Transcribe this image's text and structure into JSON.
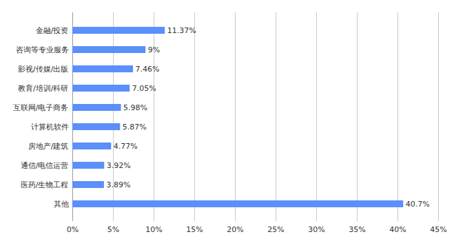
{
  "chart_data": {
    "type": "bar",
    "orientation": "horizontal",
    "categories": [
      "金融/投资",
      "咨询等专业服务",
      "影视/传媒/出版",
      "教育/培训/科研",
      "互联网/电子商务",
      "计算机软件",
      "房地产/建筑",
      "通信/电信运营",
      "医药/生物工程",
      "其他"
    ],
    "values": [
      11.37,
      9,
      7.46,
      7.05,
      5.98,
      5.87,
      4.77,
      3.92,
      3.89,
      40.7
    ],
    "value_labels": [
      "11.37%",
      "9%",
      "7.46%",
      "7.05%",
      "5.98%",
      "5.87%",
      "4.77%",
      "3.92%",
      "3.89%",
      "40.7%"
    ],
    "data_labels": true,
    "color": "#5b8ff9",
    "xlim": [
      0,
      45
    ],
    "xticks": [
      {
        "value": 0,
        "label": "0%"
      },
      {
        "value": 5,
        "label": "5%"
      },
      {
        "value": 10,
        "label": "10%"
      },
      {
        "value": 15,
        "label": "15%"
      },
      {
        "value": 20,
        "label": "20%"
      },
      {
        "value": 25,
        "label": "25%"
      },
      {
        "value": 30,
        "label": "30%"
      },
      {
        "value": 35,
        "label": "35%"
      },
      {
        "value": 40,
        "label": "40%"
      },
      {
        "value": 45,
        "label": "45%"
      }
    ],
    "grid": true
  }
}
